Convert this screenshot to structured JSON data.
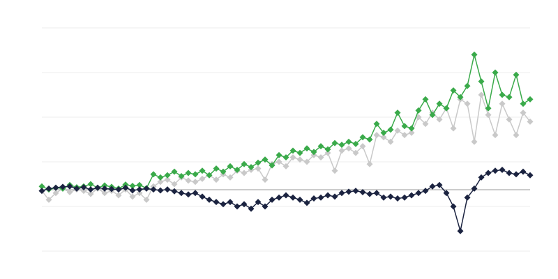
{
  "chart_data": {
    "type": "line",
    "x": [
      0,
      1,
      2,
      3,
      4,
      5,
      6,
      7,
      8,
      9,
      10,
      11,
      12,
      13,
      14,
      15,
      16,
      17,
      18,
      19,
      20,
      21,
      22,
      23,
      24,
      25,
      26,
      27,
      28,
      29,
      30,
      31,
      32,
      33,
      34,
      35,
      36,
      37,
      38,
      39,
      40,
      41,
      42,
      43,
      44,
      45,
      46,
      47,
      48,
      49,
      50,
      51,
      52,
      53,
      54,
      55,
      56,
      57,
      58,
      59,
      60,
      61,
      62,
      63,
      64,
      65,
      66,
      67,
      68,
      69,
      70
    ],
    "xlim": [
      0,
      70
    ],
    "ylim": [
      0,
      5
    ],
    "yticks": [
      0,
      1,
      2,
      3,
      4,
      5
    ],
    "grid": true,
    "reference_line": 1.375,
    "series": [
      {
        "color": "#c9c9c9",
        "values": [
          1.35,
          1.15,
          1.3,
          1.4,
          1.32,
          1.38,
          1.35,
          1.28,
          1.4,
          1.3,
          1.35,
          1.25,
          1.38,
          1.22,
          1.3,
          1.15,
          1.45,
          1.55,
          1.6,
          1.5,
          1.65,
          1.58,
          1.55,
          1.62,
          1.7,
          1.6,
          1.72,
          1.65,
          1.8,
          1.75,
          1.82,
          1.85,
          1.6,
          1.95,
          2.0,
          1.9,
          2.1,
          2.05,
          2.0,
          2.15,
          2.1,
          2.2,
          1.8,
          2.25,
          2.3,
          2.2,
          2.35,
          1.95,
          2.6,
          2.55,
          2.45,
          2.7,
          2.6,
          2.65,
          3.0,
          2.85,
          3.1,
          2.95,
          3.2,
          2.75,
          3.4,
          3.3,
          2.45,
          3.5,
          3.05,
          2.6,
          3.3,
          2.95,
          2.6,
          3.1,
          2.9
        ]
      },
      {
        "color": "#3aaa4a",
        "values": [
          1.45,
          1.38,
          1.42,
          1.4,
          1.48,
          1.43,
          1.45,
          1.5,
          1.42,
          1.47,
          1.44,
          1.4,
          1.49,
          1.46,
          1.48,
          1.41,
          1.72,
          1.65,
          1.7,
          1.78,
          1.68,
          1.75,
          1.72,
          1.8,
          1.7,
          1.85,
          1.78,
          1.9,
          1.82,
          1.95,
          1.88,
          1.98,
          2.05,
          1.92,
          2.15,
          2.1,
          2.25,
          2.2,
          2.3,
          2.22,
          2.35,
          2.28,
          2.42,
          2.38,
          2.45,
          2.4,
          2.55,
          2.5,
          2.85,
          2.65,
          2.72,
          3.1,
          2.8,
          2.75,
          3.15,
          3.4,
          3.05,
          3.3,
          3.2,
          3.6,
          3.45,
          3.7,
          4.4,
          3.8,
          3.2,
          4.0,
          3.5,
          3.45,
          3.95,
          3.3,
          3.4
        ]
      },
      {
        "color": "#1b2340",
        "values": [
          1.35,
          1.4,
          1.42,
          1.44,
          1.45,
          1.4,
          1.43,
          1.38,
          1.42,
          1.4,
          1.39,
          1.38,
          1.42,
          1.36,
          1.38,
          1.4,
          1.38,
          1.36,
          1.38,
          1.34,
          1.3,
          1.27,
          1.3,
          1.22,
          1.15,
          1.1,
          1.05,
          1.1,
          1.0,
          1.05,
          0.95,
          1.1,
          1.0,
          1.15,
          1.2,
          1.25,
          1.2,
          1.15,
          1.08,
          1.18,
          1.2,
          1.25,
          1.22,
          1.3,
          1.33,
          1.35,
          1.32,
          1.28,
          1.3,
          1.2,
          1.22,
          1.18,
          1.2,
          1.25,
          1.3,
          1.35,
          1.45,
          1.48,
          1.3,
          1.0,
          0.45,
          1.2,
          1.4,
          1.65,
          1.75,
          1.8,
          1.82,
          1.75,
          1.72,
          1.78,
          1.7
        ]
      }
    ]
  }
}
